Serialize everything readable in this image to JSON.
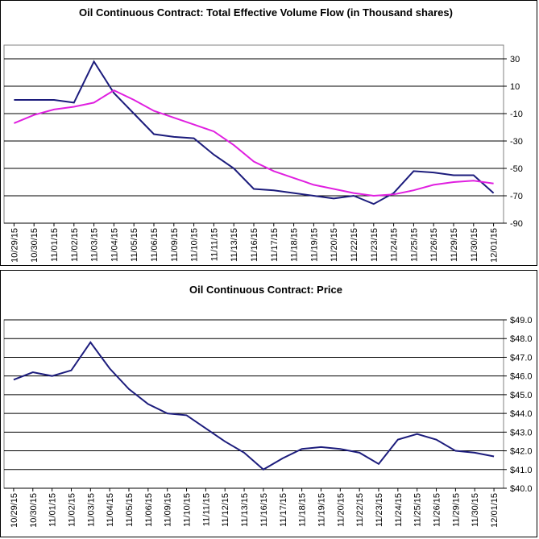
{
  "chart_data": [
    {
      "type": "line",
      "title": "Oil Continuous Contract: Total Effective Volume Flow (in Thousand shares)",
      "categories": [
        "10/29/15",
        "10/30/15",
        "11/01/15",
        "11/02/15",
        "11/03/15",
        "11/04/15",
        "11/05/15",
        "11/06/15",
        "11/09/15",
        "11/10/15",
        "11/11/15",
        "11/13/15",
        "11/16/15",
        "11/17/15",
        "11/18/15",
        "11/19/15",
        "11/20/15",
        "11/22/15",
        "11/23/15",
        "11/24/15",
        "11/25/15",
        "11/26/15",
        "11/29/15",
        "11/30/15",
        "12/01/15"
      ],
      "series": [
        {
          "color": "#1c1c7c",
          "values": [
            0,
            0,
            0,
            -2,
            28,
            5,
            -10,
            -25,
            -27,
            -28,
            -40,
            -50,
            -65,
            -66,
            -68,
            -70,
            -72,
            -70,
            -76,
            -68,
            -52,
            -53,
            -55,
            -55,
            -68
          ]
        },
        {
          "color": "#e020e0",
          "values": [
            -17,
            -11,
            -7,
            -5,
            -2,
            7,
            0,
            -8,
            -13,
            -18,
            -23,
            -33,
            -45,
            -52,
            -57,
            -62,
            -65,
            -68,
            -70,
            -69,
            -66,
            -62,
            -60,
            -59,
            -61
          ]
        }
      ],
      "ylim": [
        -90,
        40
      ],
      "yticks": [
        30,
        10,
        -10,
        -30,
        -50,
        -70,
        -90
      ],
      "grid": true
    },
    {
      "type": "line",
      "title": "Oil Continuous Contract: Price",
      "categories": [
        "10/29/15",
        "10/30/15",
        "11/01/15",
        "11/02/15",
        "11/03/15",
        "11/04/15",
        "11/05/15",
        "11/06/15",
        "11/09/15",
        "11/10/15",
        "11/11/15",
        "11/12/15",
        "11/13/15",
        "11/16/15",
        "11/17/15",
        "11/18/15",
        "11/19/15",
        "11/20/15",
        "11/22/15",
        "11/23/15",
        "11/24/15",
        "11/25/15",
        "11/26/15",
        "11/29/15",
        "11/30/15",
        "12/01/15"
      ],
      "series": [
        {
          "color": "#1c1c7c",
          "values": [
            45.8,
            46.2,
            46.0,
            46.3,
            47.8,
            46.4,
            45.3,
            44.5,
            44.0,
            43.9,
            43.2,
            42.5,
            41.9,
            41.0,
            41.6,
            42.1,
            42.2,
            42.1,
            41.9,
            41.3,
            42.6,
            42.9,
            42.6,
            42.0,
            41.9,
            41.7
          ]
        }
      ],
      "ylim": [
        40,
        49
      ],
      "yticks": [
        {
          "value": 49,
          "label": "$49.0"
        },
        {
          "value": 48,
          "label": "$48.0"
        },
        {
          "value": 47,
          "label": "$47.0"
        },
        {
          "value": 46,
          "label": "$46.0"
        },
        {
          "value": 45,
          "label": "$45.0"
        },
        {
          "value": 44,
          "label": "$44.0"
        },
        {
          "value": 43,
          "label": "$43.0"
        },
        {
          "value": 42,
          "label": "$42.0"
        },
        {
          "value": 41,
          "label": "$41.0"
        },
        {
          "value": 40,
          "label": "$40.0"
        }
      ],
      "grid": true
    }
  ]
}
